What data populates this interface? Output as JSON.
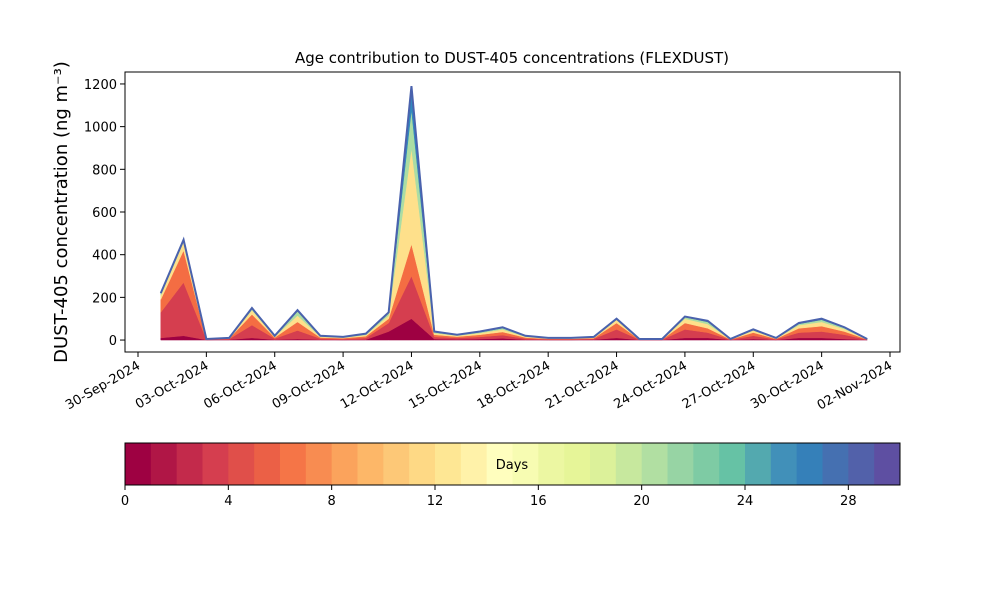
{
  "chart_data": {
    "type": "stacked_area",
    "title": "Age contribution to DUST-405 concentrations (FLEXDUST)",
    "ylabel": "DUST-405 concentration (ng m⁻³)",
    "x": [
      "2024-10-01",
      "2024-10-02",
      "2024-10-03",
      "2024-10-04",
      "2024-10-05",
      "2024-10-06",
      "2024-10-07",
      "2024-10-08",
      "2024-10-09",
      "2024-10-10",
      "2024-10-11",
      "2024-10-12",
      "2024-10-13",
      "2024-10-14",
      "2024-10-15",
      "2024-10-16",
      "2024-10-17",
      "2024-10-18",
      "2024-10-19",
      "2024-10-20",
      "2024-10-21",
      "2024-10-22",
      "2024-10-23",
      "2024-10-24",
      "2024-10-25",
      "2024-10-26",
      "2024-10-27",
      "2024-10-28",
      "2024-10-29",
      "2024-10-30",
      "2024-10-31",
      "2024-11-01"
    ],
    "series": [
      {
        "color": "#9e0142",
        "values": [
          10,
          20,
          1,
          2,
          10,
          2,
          5,
          2,
          1,
          2,
          40,
          100,
          5,
          3,
          5,
          8,
          2,
          1,
          1,
          2,
          10,
          1,
          1,
          10,
          10,
          1,
          5,
          1,
          10,
          10,
          5,
          1
        ]
      },
      {
        "color": "#d53e4f",
        "values": [
          120,
          250,
          2,
          3,
          60,
          5,
          40,
          5,
          4,
          8,
          40,
          200,
          10,
          7,
          10,
          15,
          5,
          3,
          3,
          4,
          40,
          1,
          1,
          40,
          25,
          1,
          15,
          3,
          25,
          30,
          20,
          1
        ]
      },
      {
        "color": "#f46d43",
        "values": [
          60,
          150,
          1,
          2,
          50,
          5,
          40,
          5,
          4,
          8,
          20,
          150,
          10,
          6,
          10,
          15,
          5,
          2,
          2,
          3,
          30,
          1,
          1,
          30,
          20,
          1,
          15,
          2,
          20,
          25,
          15,
          1
        ]
      },
      {
        "color": "#fee08b",
        "values": [
          20,
          40,
          1,
          2,
          20,
          4,
          30,
          4,
          3,
          6,
          15,
          450,
          8,
          5,
          8,
          12,
          4,
          2,
          2,
          3,
          15,
          1,
          1,
          20,
          20,
          1,
          10,
          2,
          15,
          20,
          12,
          1
        ]
      },
      {
        "color": "#abdda4",
        "values": [
          8,
          8,
          0,
          1,
          7,
          2,
          20,
          2,
          2,
          4,
          10,
          180,
          4,
          2,
          4,
          6,
          2,
          1,
          1,
          2,
          4,
          1,
          1,
          8,
          10,
          1,
          4,
          1,
          6,
          10,
          5,
          1
        ]
      },
      {
        "color": "#3288bd",
        "values": [
          2,
          2,
          0,
          0,
          3,
          2,
          5,
          2,
          1,
          2,
          5,
          110,
          3,
          2,
          3,
          4,
          2,
          1,
          1,
          1,
          1,
          0,
          0,
          2,
          5,
          0,
          1,
          1,
          4,
          5,
          3,
          0
        ]
      }
    ],
    "outline_color": "#4a62ad",
    "xlim": [
      "2024-09-30",
      "2024-11-02"
    ],
    "xticks": [
      {
        "value": "2024-09-30",
        "label": "30-Sep-2024"
      },
      {
        "value": "2024-10-03",
        "label": "03-Oct-2024"
      },
      {
        "value": "2024-10-06",
        "label": "06-Oct-2024"
      },
      {
        "value": "2024-10-09",
        "label": "09-Oct-2024"
      },
      {
        "value": "2024-10-12",
        "label": "12-Oct-2024"
      },
      {
        "value": "2024-10-15",
        "label": "15-Oct-2024"
      },
      {
        "value": "2024-10-18",
        "label": "18-Oct-2024"
      },
      {
        "value": "2024-10-21",
        "label": "21-Oct-2024"
      },
      {
        "value": "2024-10-24",
        "label": "24-Oct-2024"
      },
      {
        "value": "2024-10-27",
        "label": "27-Oct-2024"
      },
      {
        "value": "2024-10-30",
        "label": "30-Oct-2024"
      },
      {
        "value": "2024-11-02",
        "label": "02-Nov-2024"
      }
    ],
    "ylim": [
      -56,
      1256
    ],
    "yticks": [
      0,
      200,
      400,
      600,
      800,
      1000,
      1200
    ],
    "colorbar": {
      "label": "Days",
      "lim": [
        0,
        30
      ],
      "ticks": [
        0,
        4,
        8,
        12,
        16,
        20,
        24,
        28
      ],
      "colors": [
        "#9e0142",
        "#b01646",
        "#c32a4b",
        "#d53e4f",
        "#e04f4a",
        "#eb6046",
        "#f57547",
        "#f88c51",
        "#fba35c",
        "#fdb768",
        "#fdc877",
        "#fed985",
        "#fee794",
        "#fff2a9",
        "#fffebe",
        "#f7fcb2",
        "#ecf7a2",
        "#e6f598",
        "#dcf19a",
        "#c7e89e",
        "#b1dfa2",
        "#97d4a4",
        "#7ecba4",
        "#66c2a5",
        "#53a9af",
        "#4190b9",
        "#3580b9",
        "#4570b1",
        "#5261aa",
        "#5e4fa2"
      ]
    }
  }
}
